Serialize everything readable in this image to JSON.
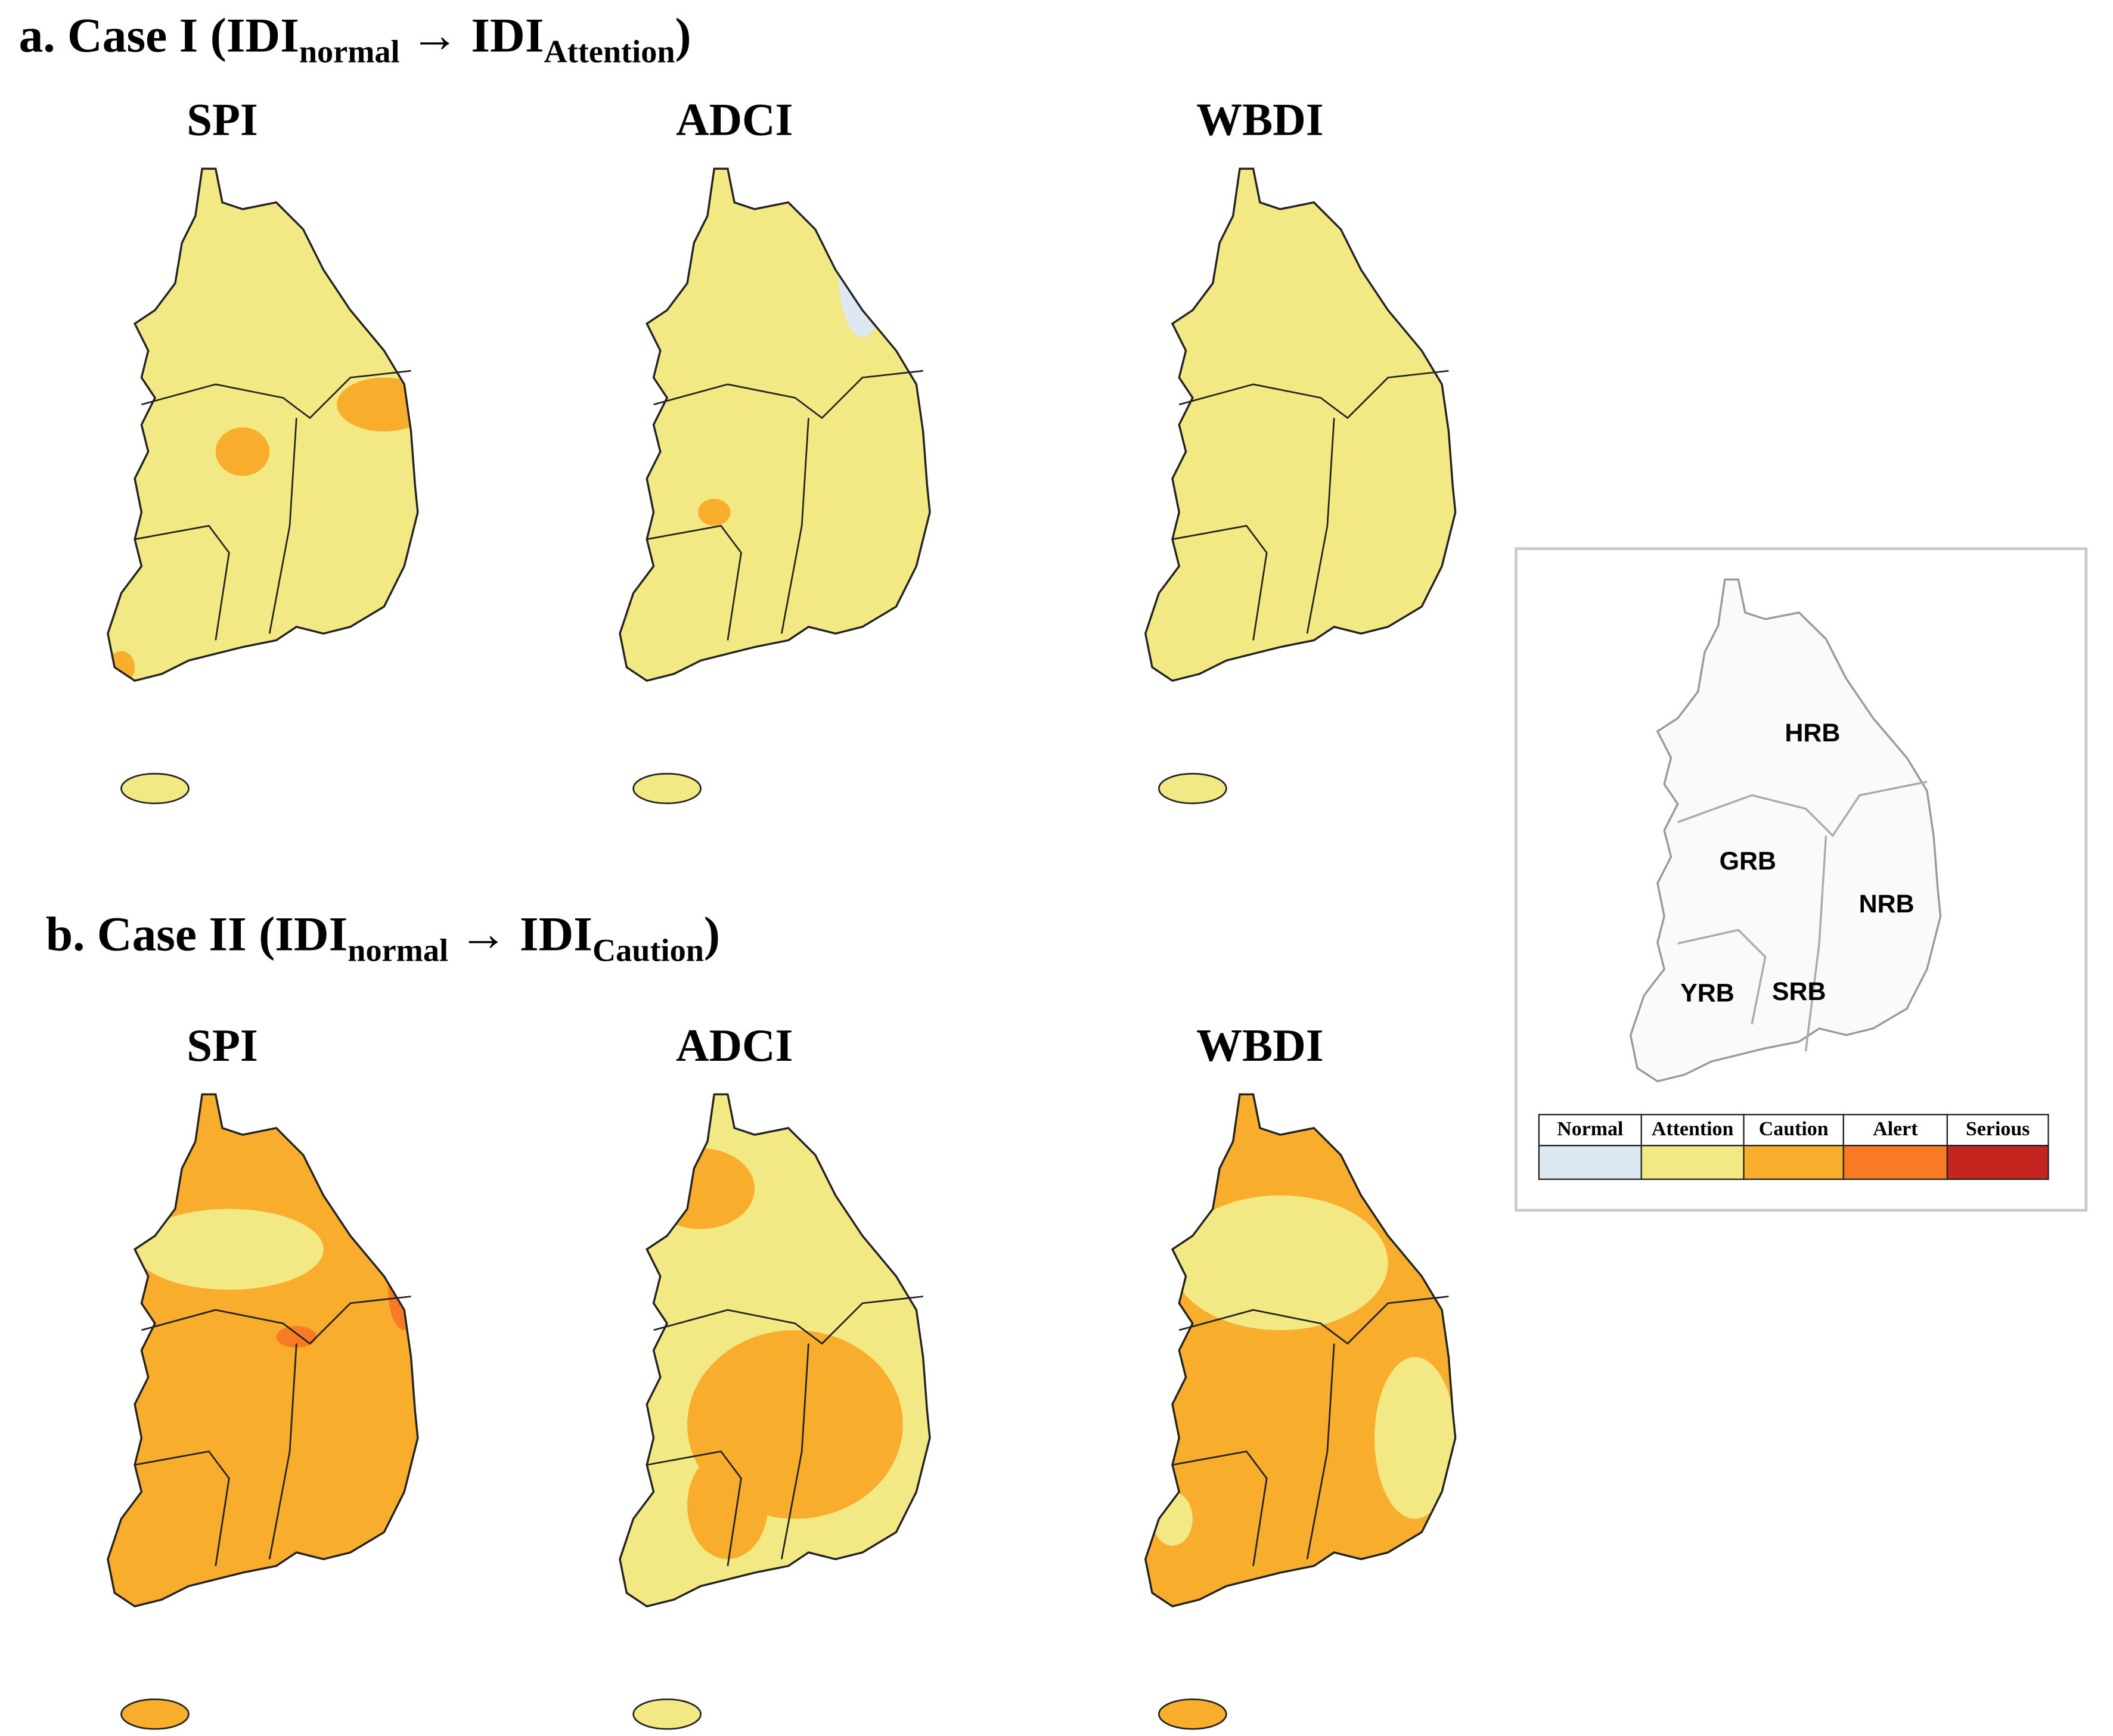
{
  "panels": [
    {
      "title_parts": [
        "a. Case I (IDI",
        "normal",
        "→ IDI",
        "Attention",
        ")"
      ],
      "maps": [
        "SPI",
        "ADCI",
        "WBDI"
      ]
    },
    {
      "title_parts": [
        "b. Case II (IDI",
        "normal",
        "→ IDI",
        "Caution",
        ")"
      ],
      "maps": [
        "SPI",
        "ADCI",
        "WBDI"
      ]
    }
  ],
  "inset": {
    "basins": [
      "HRB",
      "GRB",
      "NRB",
      "YRB",
      "SRB"
    ],
    "legend": [
      {
        "label": "Normal",
        "color": "#dde8f3"
      },
      {
        "label": "Attention",
        "color": "#f3e984"
      },
      {
        "label": "Caution",
        "color": "#f9ad2c"
      },
      {
        "label": "Alert",
        "color": "#f97a25"
      },
      {
        "label": "Serious",
        "color": "#c4261f"
      }
    ]
  }
}
